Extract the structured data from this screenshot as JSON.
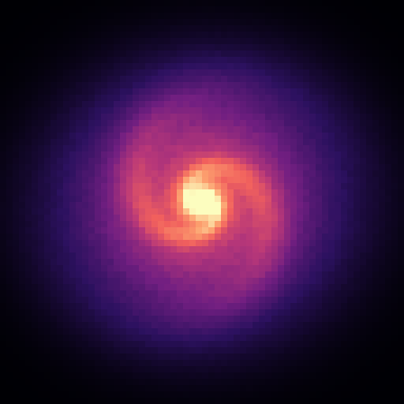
{
  "image": {
    "subject": "spiral-galaxy",
    "colormap": "magma",
    "background_color": "#000000",
    "palette": [
      "#000004",
      "#2c115f",
      "#721f81",
      "#b73779",
      "#f1605d",
      "#fc9f6e",
      "#fcfdbf"
    ]
  }
}
